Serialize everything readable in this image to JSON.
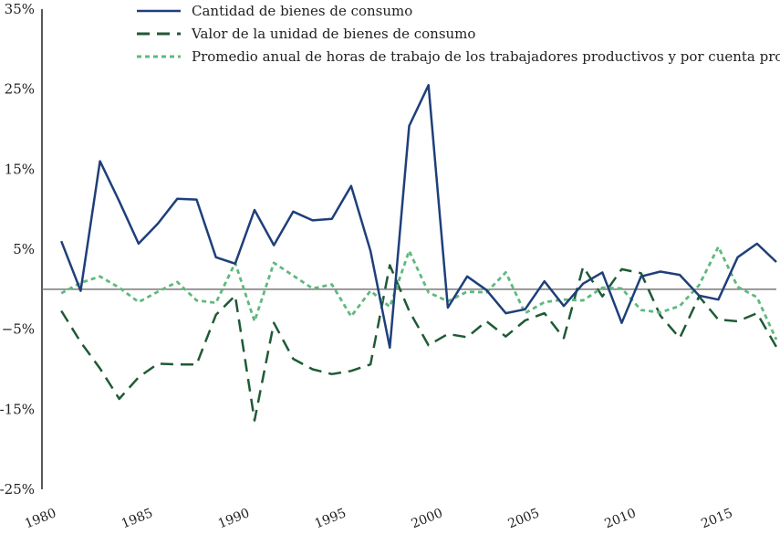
{
  "chart_data": {
    "type": "line",
    "title": "",
    "xlabel": "",
    "ylabel": "",
    "xlim": [
      1980,
      2018
    ],
    "ylim": [
      -25,
      35
    ],
    "yticks": [
      35,
      25,
      15,
      5,
      -5,
      -15,
      -25
    ],
    "ytick_labels": [
      "35%",
      "25%",
      "15%",
      "5%",
      "−5%",
      "-15%",
      "-25%"
    ],
    "xticks": [
      1980,
      1985,
      1990,
      1995,
      2000,
      2005,
      2010,
      2015
    ],
    "xtick_labels": [
      "1980",
      "1985",
      "1990",
      "1995",
      "2000",
      "2005",
      "2010",
      "2015"
    ],
    "zero_line": true,
    "grid": false,
    "legend_position": "top",
    "x": [
      1981,
      1982,
      1983,
      1984,
      1985,
      1986,
      1987,
      1988,
      1989,
      1990,
      1991,
      1992,
      1993,
      1994,
      1995,
      1996,
      1997,
      1998,
      1999,
      2000,
      2001,
      2002,
      2003,
      2004,
      2005,
      2006,
      2007,
      2008,
      2009,
      2010,
      2011,
      2012,
      2013,
      2014,
      2015,
      2016,
      2017,
      2018
    ],
    "series": [
      {
        "name": "Cantidad de bienes de consumo",
        "color": "#1f3f7a",
        "dash": "solid",
        "values": [
          6,
          -0.2,
          16,
          11,
          5.7,
          8.2,
          11.3,
          11.2,
          4,
          3.2,
          9.9,
          5.5,
          9.7,
          8.6,
          8.8,
          12.9,
          4.8,
          -7.3,
          20.4,
          25.5,
          -2.3,
          1.6,
          -0.1,
          -3,
          -2.5,
          1,
          -2.1,
          0.7,
          2.1,
          -4.2,
          1.6,
          2.2,
          1.8,
          -0.8,
          -1.3,
          4,
          5.7,
          3.4
        ]
      },
      {
        "name": "Valor de la unidad de bienes de consumo",
        "color": "#1f5a36",
        "dash": "long",
        "values": [
          -2.7,
          -6.6,
          -9.9,
          -13.7,
          -11,
          -9.3,
          -9.4,
          -9.4,
          -3.2,
          -0.8,
          -16.4,
          -4.2,
          -8.7,
          -10,
          -10.6,
          -10.2,
          -9.4,
          3,
          -2.7,
          -7,
          -5.6,
          -6,
          -4,
          -5.9,
          -3.9,
          -3,
          -6.1,
          2.8,
          -0.9,
          2.5,
          2,
          -3.3,
          -6.1,
          -0.9,
          -3.8,
          -4,
          -3,
          -7.2
        ]
      },
      {
        "name": "Promedio anual de horas de trabajo de los trabajadores productivos y por cuenta propia",
        "color": "#5fb97e",
        "dash": "short",
        "values": [
          -0.5,
          0.8,
          1.6,
          0.2,
          -1.6,
          -0.3,
          0.9,
          -1.4,
          -1.7,
          3.3,
          -4,
          3.3,
          1.7,
          0.1,
          0.6,
          -3.4,
          -0.2,
          -2.2,
          4.8,
          -0.4,
          -1.5,
          -0.3,
          -0.4,
          2.1,
          -3,
          -1.6,
          -1.3,
          -1.4,
          0.2,
          0.1,
          -2.6,
          -2.9,
          -2.1,
          0.5,
          5.3,
          0.3,
          -1,
          -6.3
        ]
      }
    ]
  }
}
